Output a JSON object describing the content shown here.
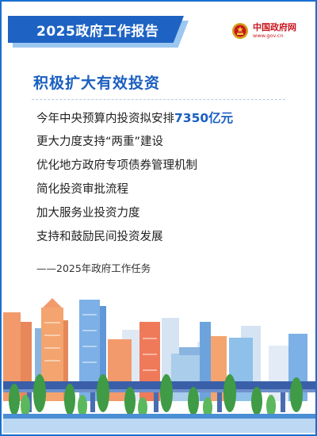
{
  "header": {
    "title": "2025政府工作报告"
  },
  "brand": {
    "name": "中国政府网",
    "url": "www.gov.cn",
    "emblem_icon": "national-emblem-icon",
    "color": "#c8161d"
  },
  "content": {
    "section_title": "积极扩大有效投资",
    "items": [
      {
        "before": "今年中央预算内投资拟安排",
        "highlight": "7350亿元"
      },
      {
        "text": "更大力度支持“两重”建设"
      },
      {
        "text": "优化地方政府专项债券管理机制"
      },
      {
        "text": "简化投资审批流程"
      },
      {
        "text": "加大服务业投资力度"
      },
      {
        "text": "支持和鼓励民间投资发展"
      }
    ],
    "source": "——2025年政府工作任务"
  },
  "colors": {
    "accent": "#1e63c3",
    "highlight": "#1a5fc0",
    "frame": "#1a6fcf"
  },
  "illustration": {
    "icon": "city-skyline-illustration"
  }
}
